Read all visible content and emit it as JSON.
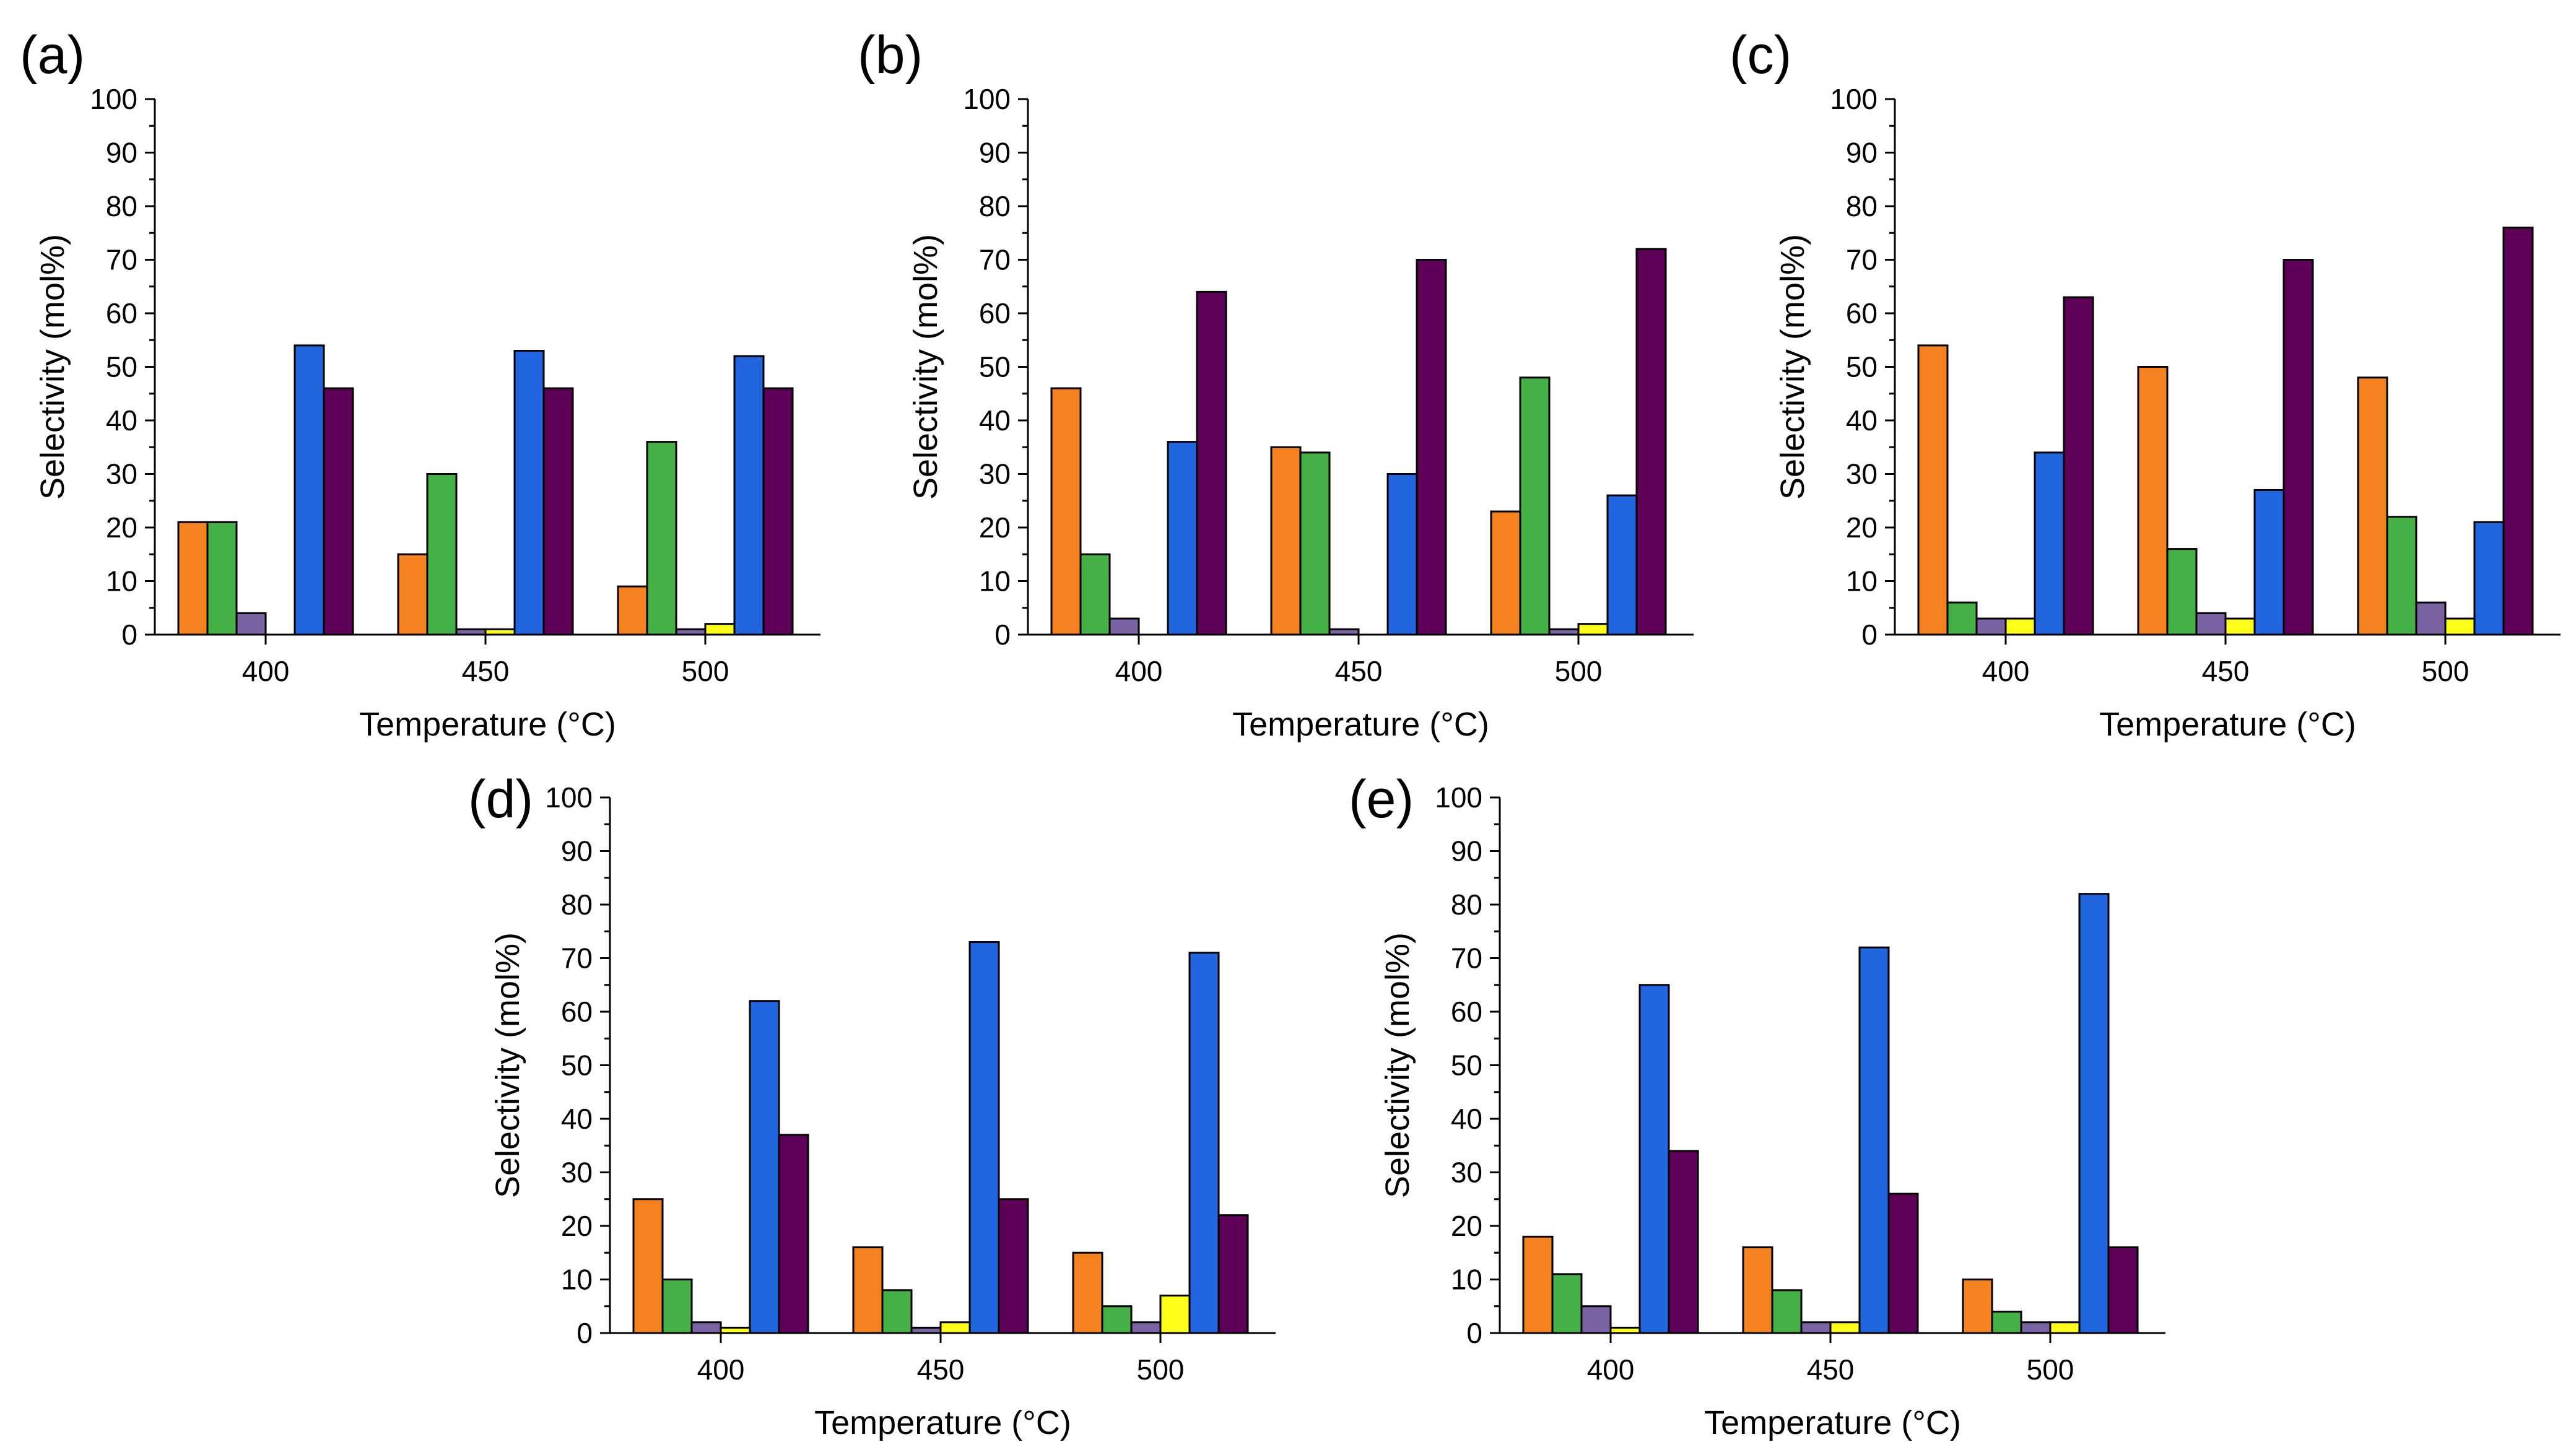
{
  "figure_title": "",
  "colors": {
    "orange": "#F5811F",
    "green": "#45B045",
    "purple": "#7B62A3",
    "yellow": "#FFFF1A",
    "blue": "#2166E0",
    "dark_purple": "#5E0057"
  },
  "series_order": [
    "orange",
    "green",
    "purple",
    "yellow",
    "blue",
    "dark_purple"
  ],
  "chart_data": [
    {
      "panel": "(a)",
      "type": "bar",
      "categories": [
        "400",
        "450",
        "500"
      ],
      "xlabel": "Temperature (°C)",
      "ylabel": "Selectivity (mol%)",
      "ylim": [
        0,
        100
      ],
      "yticks": [
        "0",
        "10",
        "20",
        "30",
        "40",
        "50",
        "60",
        "70",
        "80",
        "90",
        "100"
      ],
      "series": [
        {
          "name": "orange",
          "color": "#F5811F",
          "values": [
            21,
            15,
            9
          ]
        },
        {
          "name": "green",
          "color": "#45B045",
          "values": [
            21,
            30,
            36
          ]
        },
        {
          "name": "purple",
          "color": "#7B62A3",
          "values": [
            4,
            1,
            1
          ]
        },
        {
          "name": "yellow",
          "color": "#FFFF1A",
          "values": [
            0,
            1,
            2
          ]
        },
        {
          "name": "blue",
          "color": "#2166E0",
          "values": [
            54,
            53,
            52
          ]
        },
        {
          "name": "dark_purple",
          "color": "#5E0057",
          "values": [
            46,
            46,
            46
          ]
        }
      ]
    },
    {
      "panel": "(b)",
      "type": "bar",
      "categories": [
        "400",
        "450",
        "500"
      ],
      "xlabel": "Temperature (°C)",
      "ylabel": "Selectivity (mol%)",
      "ylim": [
        0,
        100
      ],
      "yticks": [
        "0",
        "10",
        "20",
        "30",
        "40",
        "50",
        "60",
        "70",
        "80",
        "90",
        "100"
      ],
      "series": [
        {
          "name": "orange",
          "color": "#F5811F",
          "values": [
            46,
            35,
            23
          ]
        },
        {
          "name": "green",
          "color": "#45B045",
          "values": [
            15,
            34,
            48
          ]
        },
        {
          "name": "purple",
          "color": "#7B62A3",
          "values": [
            3,
            1,
            1
          ]
        },
        {
          "name": "yellow",
          "color": "#FFFF1A",
          "values": [
            0,
            0,
            2
          ]
        },
        {
          "name": "blue",
          "color": "#2166E0",
          "values": [
            36,
            30,
            26
          ]
        },
        {
          "name": "dark_purple",
          "color": "#5E0057",
          "values": [
            64,
            70,
            72
          ]
        }
      ]
    },
    {
      "panel": "(c)",
      "type": "bar",
      "categories": [
        "400",
        "450",
        "500"
      ],
      "xlabel": "Temperature (°C)",
      "ylabel": "Selectivity (mol%)",
      "ylim": [
        0,
        100
      ],
      "yticks": [
        "0",
        "10",
        "20",
        "30",
        "40",
        "50",
        "60",
        "70",
        "80",
        "90",
        "100"
      ],
      "series": [
        {
          "name": "orange",
          "color": "#F5811F",
          "values": [
            54,
            50,
            48
          ]
        },
        {
          "name": "green",
          "color": "#45B045",
          "values": [
            6,
            16,
            22
          ]
        },
        {
          "name": "purple",
          "color": "#7B62A3",
          "values": [
            3,
            4,
            6
          ]
        },
        {
          "name": "yellow",
          "color": "#FFFF1A",
          "values": [
            3,
            3,
            3
          ]
        },
        {
          "name": "blue",
          "color": "#2166E0",
          "values": [
            34,
            27,
            21
          ]
        },
        {
          "name": "dark_purple",
          "color": "#5E0057",
          "values": [
            63,
            70,
            76
          ]
        }
      ]
    },
    {
      "panel": "(d)",
      "type": "bar",
      "categories": [
        "400",
        "450",
        "500"
      ],
      "xlabel": "Temperature (°C)",
      "ylabel": "Selectivity (mol%)",
      "ylim": [
        0,
        100
      ],
      "yticks": [
        "0",
        "10",
        "20",
        "30",
        "40",
        "50",
        "60",
        "70",
        "80",
        "90",
        "100"
      ],
      "series": [
        {
          "name": "orange",
          "color": "#F5811F",
          "values": [
            25,
            16,
            15
          ]
        },
        {
          "name": "green",
          "color": "#45B045",
          "values": [
            10,
            8,
            5
          ]
        },
        {
          "name": "purple",
          "color": "#7B62A3",
          "values": [
            2,
            1,
            2
          ]
        },
        {
          "name": "yellow",
          "color": "#FFFF1A",
          "values": [
            1,
            2,
            7
          ]
        },
        {
          "name": "blue",
          "color": "#2166E0",
          "values": [
            62,
            73,
            71
          ]
        },
        {
          "name": "dark_purple",
          "color": "#5E0057",
          "values": [
            37,
            25,
            22
          ]
        }
      ]
    },
    {
      "panel": "(e)",
      "type": "bar",
      "categories": [
        "400",
        "450",
        "500"
      ],
      "xlabel": "Temperature (°C)",
      "ylabel": "Selectivity (mol%)",
      "ylim": [
        0,
        100
      ],
      "yticks": [
        "0",
        "10",
        "20",
        "30",
        "40",
        "50",
        "60",
        "70",
        "80",
        "90",
        "100"
      ],
      "series": [
        {
          "name": "orange",
          "color": "#F5811F",
          "values": [
            18,
            16,
            10
          ]
        },
        {
          "name": "green",
          "color": "#45B045",
          "values": [
            11,
            8,
            4
          ]
        },
        {
          "name": "purple",
          "color": "#7B62A3",
          "values": [
            5,
            2,
            2
          ]
        },
        {
          "name": "yellow",
          "color": "#FFFF1A",
          "values": [
            1,
            2,
            2
          ]
        },
        {
          "name": "blue",
          "color": "#2166E0",
          "values": [
            65,
            72,
            82
          ]
        },
        {
          "name": "dark_purple",
          "color": "#5E0057",
          "values": [
            34,
            26,
            16
          ]
        }
      ]
    }
  ]
}
